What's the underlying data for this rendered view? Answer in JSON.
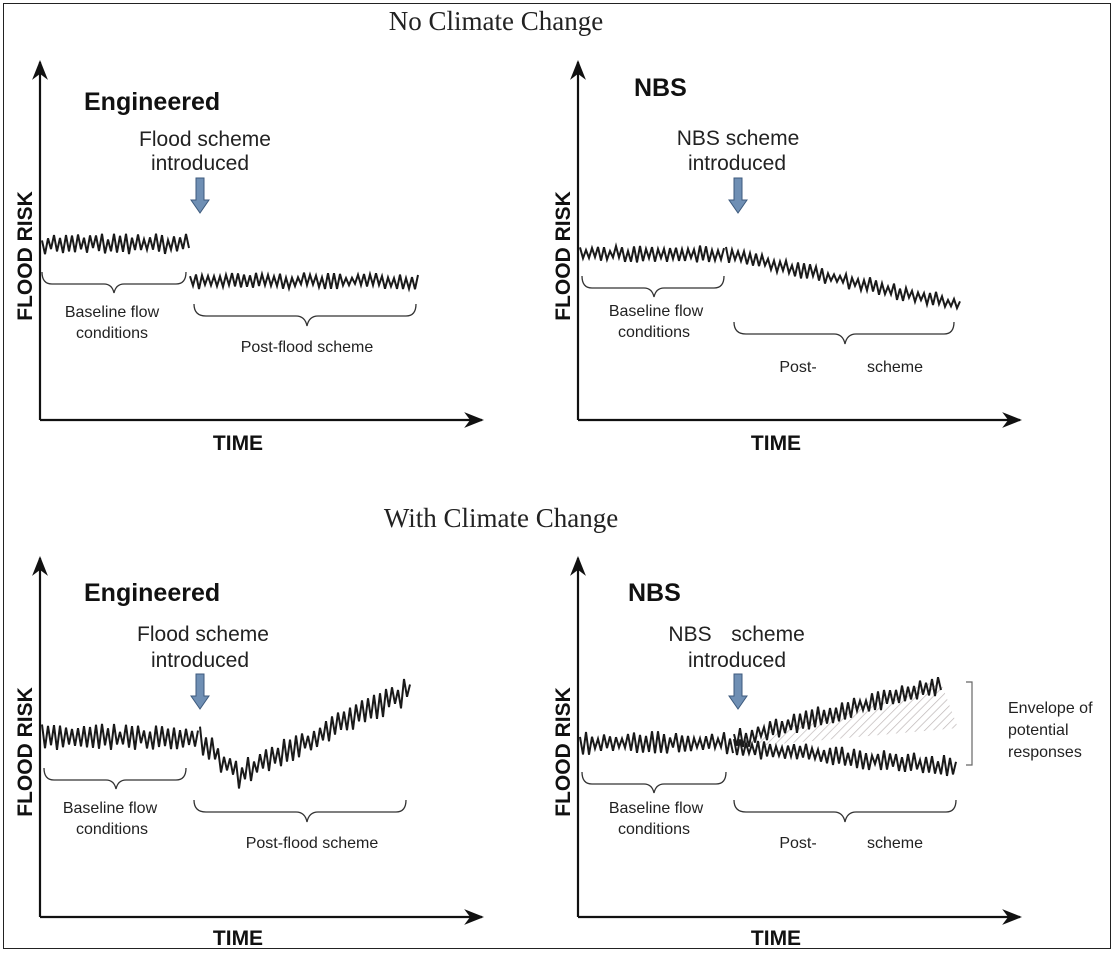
{
  "sections": {
    "top_title": "No Climate Change",
    "bottom_title": "With Climate Change"
  },
  "panels": [
    {
      "title": "Engineered",
      "annotation_line1": "Flood scheme",
      "annotation_line2": "introduced",
      "baseline_line1": "Baseline flow",
      "baseline_line2": "conditions",
      "post_label": "Post-flood scheme",
      "y_axis_label": "FLOOD RISK",
      "x_axis_label": "TIME"
    },
    {
      "title": "NBS",
      "annotation_line1": "NBS  scheme",
      "annotation_line2": "introduced",
      "baseline_line1": "Baseline flow",
      "baseline_line2": "conditions",
      "post_label_a": "Post-",
      "post_label_b": "scheme",
      "y_axis_label": "FLOOD RISK",
      "x_axis_label": "TIME"
    },
    {
      "title": "Engineered",
      "annotation_line1": "Flood scheme",
      "annotation_line2": "introduced",
      "baseline_line1": "Baseline flow",
      "baseline_line2": "conditions",
      "post_label": "Post-flood scheme",
      "y_axis_label": "FLOOD RISK",
      "x_axis_label": "TIME"
    },
    {
      "title": "NBS",
      "annotation_line1": "NBS",
      "annotation_line1b": "scheme",
      "annotation_line2": "introduced",
      "baseline_line1": "Baseline flow",
      "baseline_line2": "conditions",
      "post_label_a": "Post-",
      "post_label_b": "scheme",
      "envelope_line1": "Envelope of",
      "envelope_line2": "potential",
      "envelope_line3": "responses",
      "y_axis_label": "FLOOD RISK",
      "x_axis_label": "TIME"
    }
  ],
  "colors": {
    "arrow_fill": "#6f8fb4",
    "arrow_stroke": "#3d5a7d",
    "line": "#1a1a1a",
    "envelope_hatch": "#b8b0b0"
  }
}
